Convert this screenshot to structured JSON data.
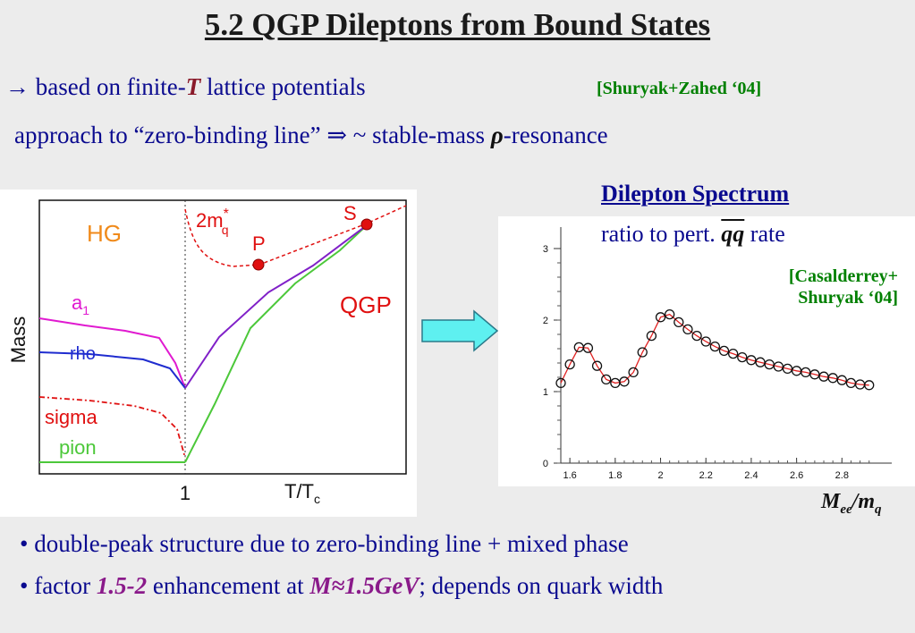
{
  "title": "5.2 QGP Dileptons from Bound States",
  "intro": {
    "line1_prefix": "→ based on finite-",
    "line1_T": "T",
    "line1_suffix": " lattice potentials",
    "ref1": "[Shuryak+Zahed ‘04]",
    "line2_prefix": "approach to “zero-binding line” ⇒ ~ stable-mass ",
    "line2_rho": "ρ",
    "line2_suffix": "-resonance"
  },
  "left_plot": {
    "ylabel": "Mass",
    "xlabel_main": "T/T",
    "xlabel_sub": "c",
    "xtick": "1",
    "region_hg": "HG",
    "region_qgp": "QGP",
    "quark_label_main": "2m",
    "quark_label_sup": "*",
    "quark_label_sub": "q",
    "point_p": "P",
    "point_s": "S",
    "curve_a1_main": "a",
    "curve_a1_sub": "1",
    "curve_rho": "rho",
    "curve_sigma": "sigma",
    "curve_pion": "pion",
    "colors": {
      "a1": "#e01ad0",
      "rho": "#1f2ccf",
      "sigma": "#e01010",
      "pion": "#4cc83a",
      "qgp": "#e01010",
      "hg": "#f08a1a",
      "fused": "#8020c8"
    }
  },
  "arrow": {
    "color": "#5ef0f0"
  },
  "spectrum": {
    "heading": "Dilepton Spectrum",
    "sub_prefix": "ratio to pert. ",
    "sub_qq": "qq",
    "sub_suffix": " rate",
    "ref2_line1": "[Casalderrey+",
    "ref2_line2": "Shuryak ‘04]",
    "axis_M": "M",
    "axis_ee": "ee",
    "axis_mq": "/m",
    "axis_q": "q"
  },
  "chart_data": {
    "type": "line",
    "x": [
      1.56,
      1.6,
      1.64,
      1.68,
      1.72,
      1.76,
      1.8,
      1.84,
      1.88,
      1.92,
      1.96,
      2.0,
      2.04,
      2.08,
      2.12,
      2.16,
      2.2,
      2.24,
      2.28,
      2.32,
      2.36,
      2.4,
      2.44,
      2.48,
      2.52,
      2.56,
      2.6,
      2.64,
      2.68,
      2.72,
      2.76,
      2.8,
      2.84,
      2.88,
      2.92
    ],
    "y": [
      1.12,
      1.38,
      1.62,
      1.61,
      1.36,
      1.17,
      1.12,
      1.14,
      1.27,
      1.55,
      1.78,
      2.04,
      2.08,
      1.97,
      1.87,
      1.78,
      1.7,
      1.63,
      1.57,
      1.53,
      1.48,
      1.44,
      1.41,
      1.38,
      1.35,
      1.32,
      1.29,
      1.27,
      1.24,
      1.21,
      1.19,
      1.16,
      1.12,
      1.1,
      1.09
    ],
    "xticks": [
      "1.6",
      "1.8",
      "2",
      "2.2",
      "2.4",
      "2.6",
      "2.8"
    ],
    "yticks": [
      "0",
      "1",
      "2",
      "3"
    ],
    "xlim": [
      1.56,
      3.0
    ],
    "ylim": [
      0,
      3.2
    ],
    "line_color": "#e02020",
    "marker": "open-circle"
  },
  "bullets": {
    "b1": "• double-peak structure due to zero-binding line + mixed phase",
    "b2_prefix": "• factor ",
    "b2_factor": "1.5-2",
    "b2_mid": " enhancement at ",
    "b2_mass": "M≈1.5GeV",
    "b2_suffix": "; depends on quark width"
  }
}
